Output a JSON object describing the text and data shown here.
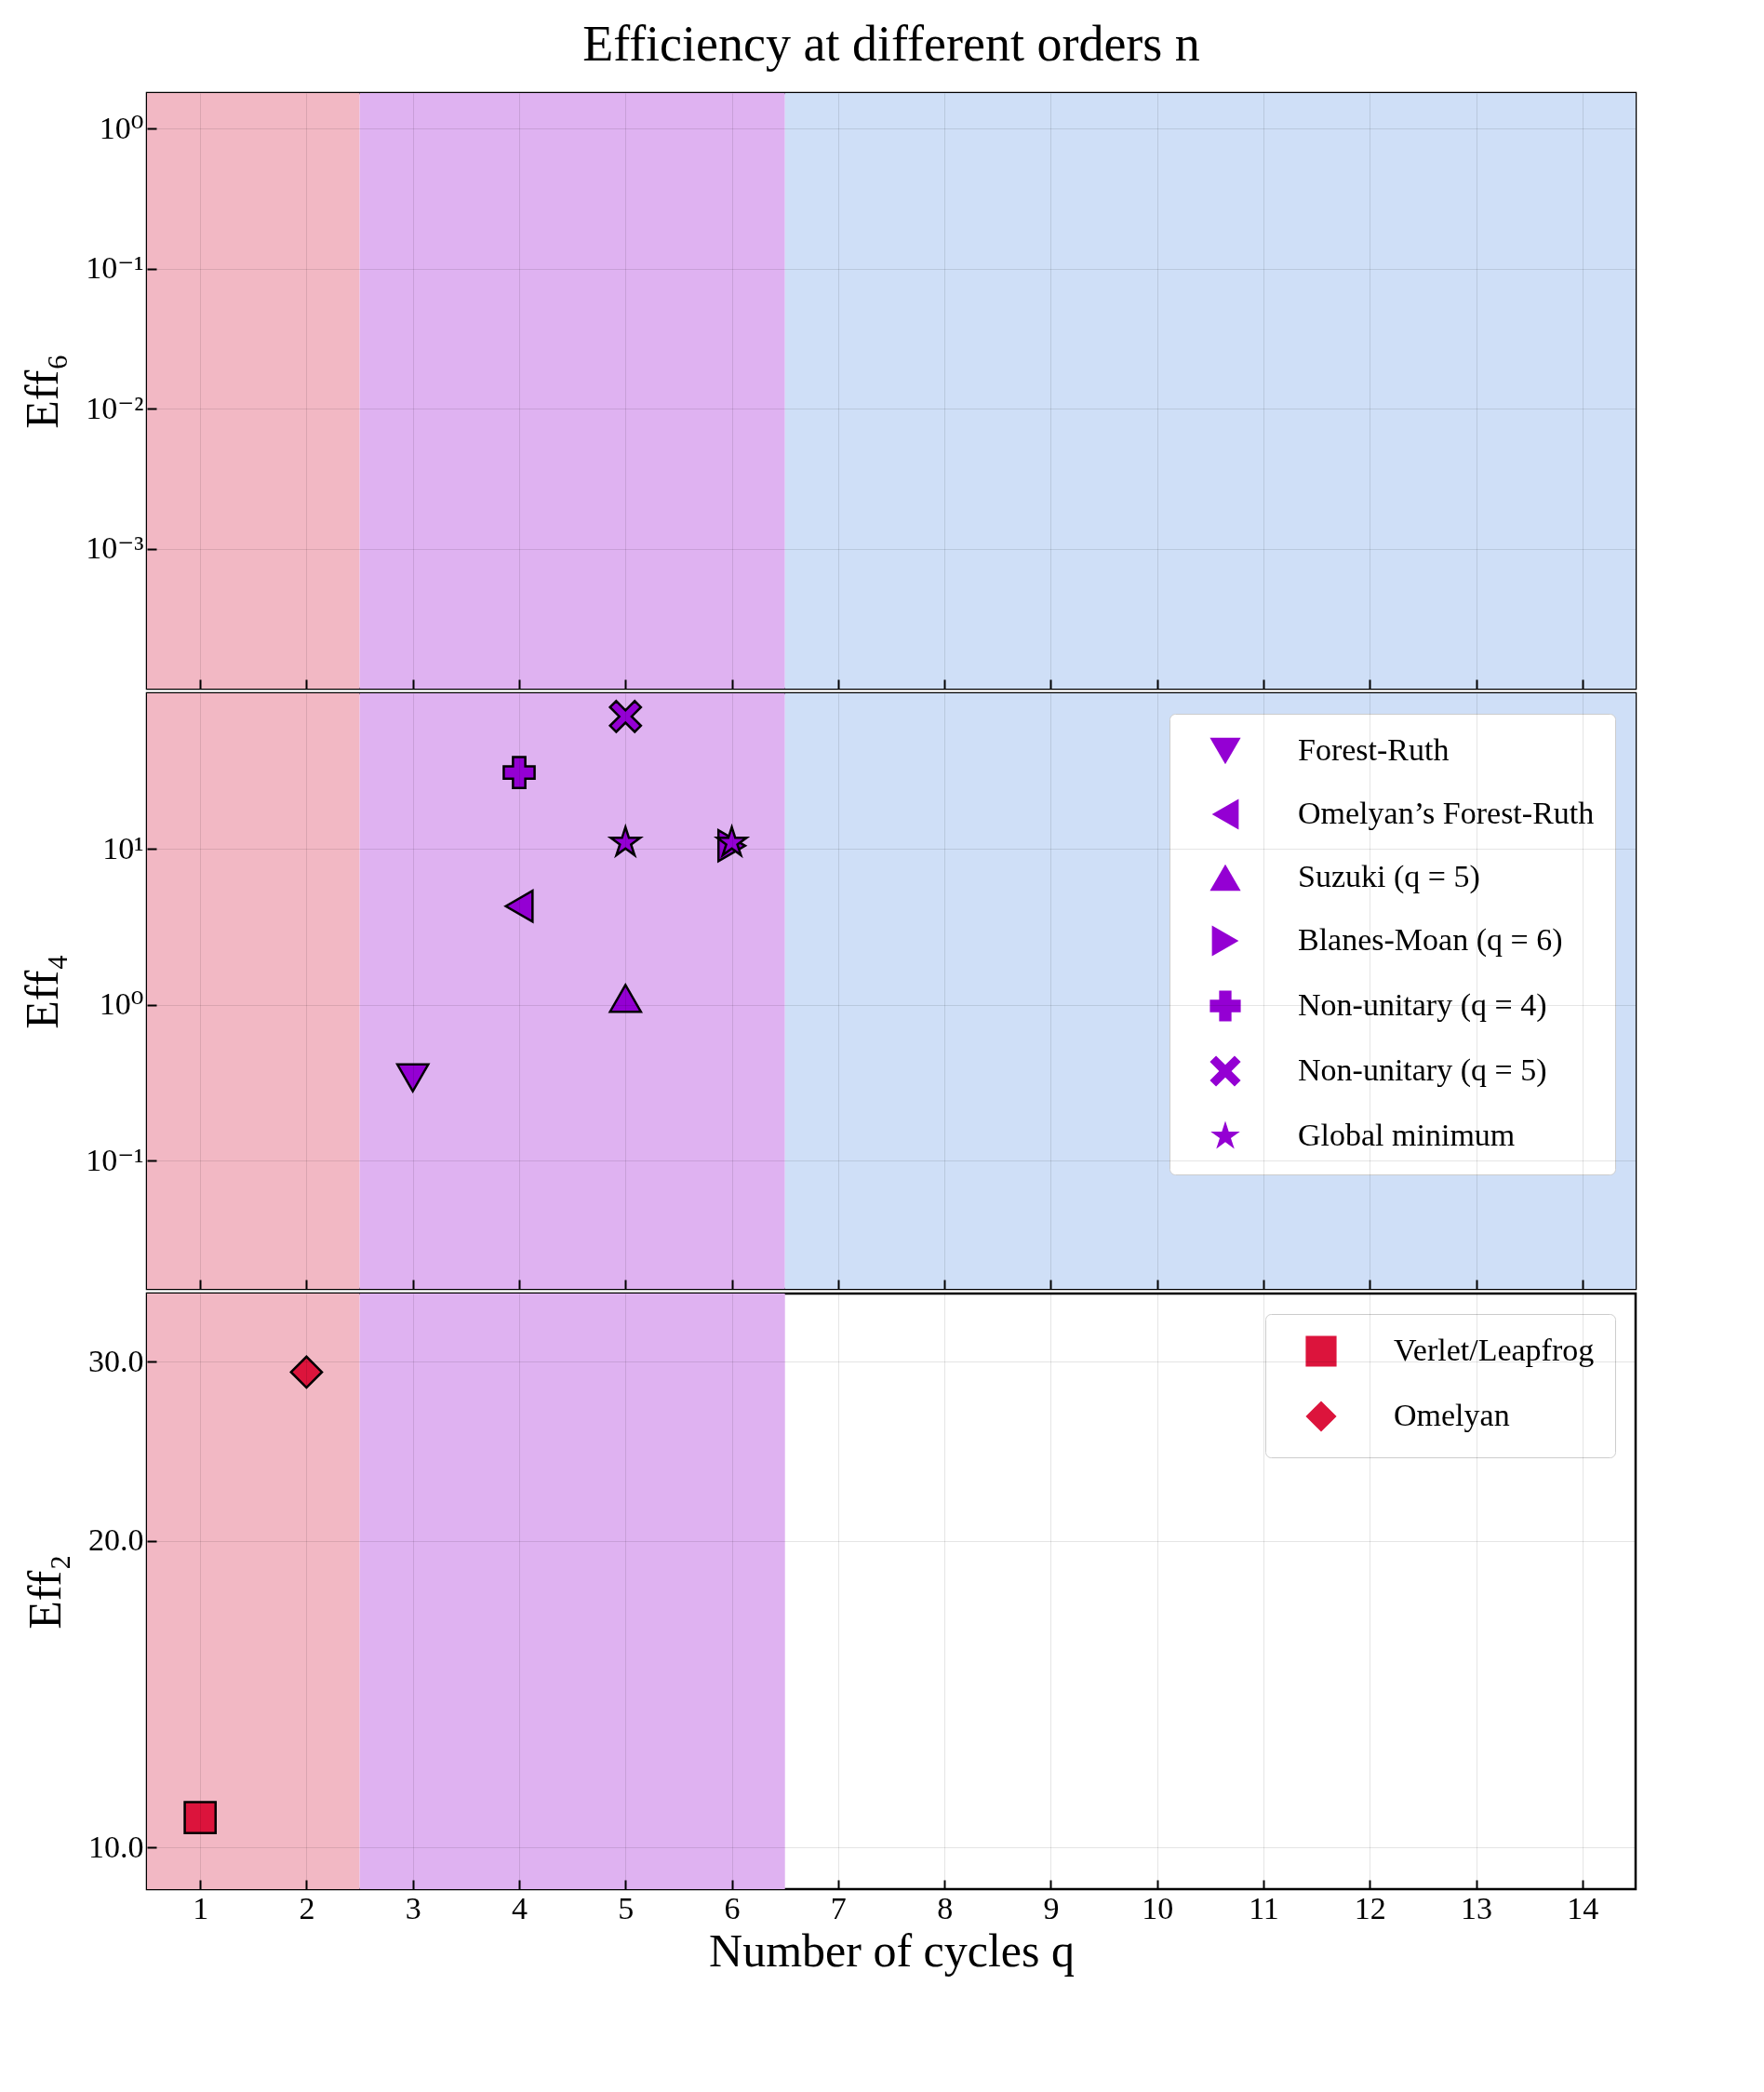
{
  "chart_data": [
    {
      "type": "scatter",
      "title": "Efficiency at different orders n",
      "ylabel": "Eff₆",
      "log": "y",
      "grid": true,
      "tick_labels": "y",
      "xlim": [
        0.5,
        14.5
      ],
      "xticks": [
        1,
        2,
        3,
        4,
        5,
        6,
        7,
        8,
        9,
        10,
        11,
        12,
        13,
        14
      ],
      "ylim": [
        0.0001,
        1.8
      ],
      "yticks": [
        {
          "value": 1,
          "label": "10⁰"
        },
        {
          "value": 0.1,
          "label": "10⁻¹"
        },
        {
          "value": 0.01,
          "label": "10⁻²"
        },
        {
          "value": 0.001,
          "label": "10⁻³"
        }
      ],
      "bands": [
        {
          "axis": "x",
          "from": 0.5,
          "to": 2.5,
          "color": "#f2b8c4"
        },
        {
          "axis": "x",
          "from": 2.5,
          "to": 6.5,
          "color": "#dfb2f1"
        },
        {
          "axis": "x",
          "from": 6.5,
          "to": 14.5,
          "color": "#cfdff7"
        }
      ]
    },
    {
      "type": "scatter",
      "ylabel": "Eff₄",
      "log": "y",
      "grid": true,
      "tick_labels": "y",
      "legend": "top right",
      "xlim": [
        0.5,
        14.5
      ],
      "xticks": [
        1,
        2,
        3,
        4,
        5,
        6,
        7,
        8,
        9,
        10,
        11,
        12,
        13,
        14
      ],
      "ylim": [
        0.015,
        100
      ],
      "yticks": [
        {
          "value": 10,
          "label": "10¹"
        },
        {
          "value": 1,
          "label": "10⁰"
        },
        {
          "value": 0.1,
          "label": "10⁻¹"
        }
      ],
      "bands": [
        {
          "axis": "x",
          "from": 0.5,
          "to": 2.5,
          "color": "#f2b8c4"
        },
        {
          "axis": "x",
          "from": 2.5,
          "to": 6.5,
          "color": "#dfb2f1"
        },
        {
          "axis": "x",
          "from": 6.5,
          "to": 14.5,
          "color": "#cfdff7"
        }
      ],
      "series": [
        {
          "name": "Forest-Ruth",
          "color": "#9400d3",
          "marker": "triangle-down",
          "x": [
            3
          ],
          "values": [
            0.34
          ]
        },
        {
          "name": "Omelyan’s Forest-Ruth",
          "color": "#9400d3",
          "marker": "triangle-left",
          "x": [
            4
          ],
          "values": [
            4.3
          ]
        },
        {
          "name": "Suzuki (q = 5)",
          "color": "#9400d3",
          "marker": "triangle",
          "x": [
            5
          ],
          "values": [
            1.1
          ]
        },
        {
          "name": "Blanes-Moan (q = 6)",
          "color": "#9400d3",
          "marker": "triangle-right",
          "x": [
            6
          ],
          "values": [
            10.5
          ]
        },
        {
          "name": "Non-unitary (q = 4)",
          "color": "#9400d3",
          "marker": "cross",
          "x": [
            4
          ],
          "values": [
            31
          ]
        },
        {
          "name": "Non-unitary (q = 5)",
          "color": "#9400d3",
          "marker": "x",
          "x": [
            5
          ],
          "values": [
            71
          ]
        },
        {
          "name": "Global minimum",
          "color": "#9400d3",
          "marker": "star",
          "x": [
            5,
            6
          ],
          "values": [
            11,
            11
          ]
        }
      ]
    },
    {
      "type": "scatter",
      "ylabel": "Eff₂",
      "xlabel": "Number of cycles q",
      "log": "y",
      "grid": true,
      "legend": "top right",
      "xlim": [
        0.5,
        14.5
      ],
      "xticks": [
        1,
        2,
        3,
        4,
        5,
        6,
        7,
        8,
        9,
        10,
        11,
        12,
        13,
        14
      ],
      "ylim": [
        9.1,
        35
      ],
      "yticks": [
        {
          "value": 30,
          "label": "30.0"
        },
        {
          "value": 20,
          "label": "20.0"
        },
        {
          "value": 10,
          "label": "10.0"
        }
      ],
      "bands": [
        {
          "axis": "x",
          "from": 0.5,
          "to": 2.5,
          "color": "#f2b8c4"
        },
        {
          "axis": "x",
          "from": 2.5,
          "to": 6.5,
          "color": "#dfb2f1"
        }
      ],
      "series": [
        {
          "name": "Verlet/Leapfrog",
          "color": "#dc143c",
          "marker": "square",
          "x": [
            1
          ],
          "values": [
            10.7
          ]
        },
        {
          "name": "Omelyan",
          "color": "#dc143c",
          "marker": "diamond",
          "x": [
            2
          ],
          "values": [
            29.3
          ]
        }
      ]
    }
  ]
}
